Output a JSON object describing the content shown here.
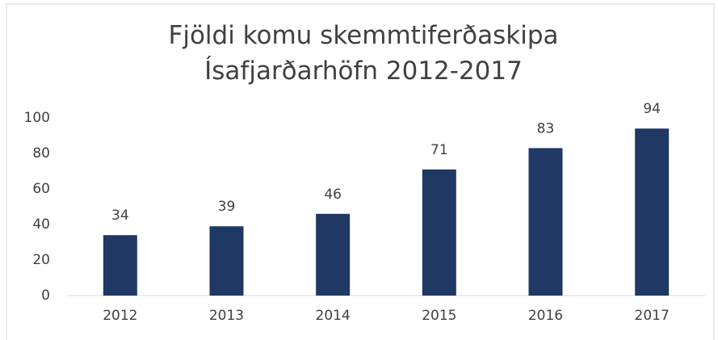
{
  "chart_data": {
    "type": "bar",
    "title": "Fjöldi komu skemmtiferðaskipa Ísafjarðarhöfn 2012-2017",
    "categories": [
      "2012",
      "2013",
      "2014",
      "2015",
      "2016",
      "2017"
    ],
    "values": [
      34,
      39,
      46,
      71,
      83,
      94
    ],
    "color": "#1f3864",
    "ylim": [
      0,
      100
    ],
    "yticks": [
      0,
      20,
      40,
      60,
      80,
      100
    ],
    "grid": false
  }
}
